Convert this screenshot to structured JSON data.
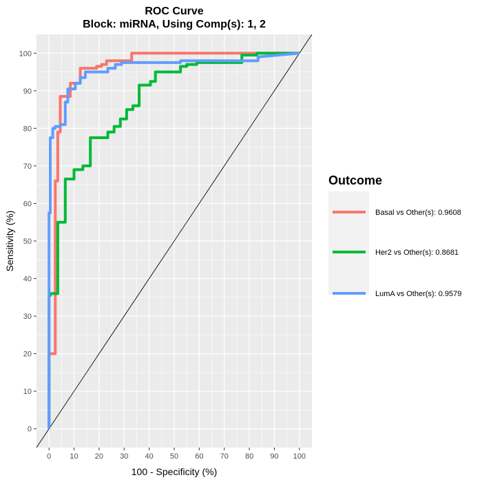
{
  "chart_data": {
    "type": "line",
    "title": "ROC Curve",
    "subtitle": "Block: miRNA, Using Comp(s): 1, 2",
    "xlabel": "100 - Specificity (%)",
    "ylabel": "Sensitivity (%)",
    "xlim": [
      -5,
      105
    ],
    "ylim": [
      -5,
      105
    ],
    "x_ticks": [
      0,
      10,
      20,
      30,
      40,
      50,
      60,
      70,
      80,
      90,
      100
    ],
    "y_ticks": [
      0,
      10,
      20,
      30,
      40,
      50,
      60,
      70,
      80,
      90,
      100
    ],
    "grid": true,
    "reference_line": {
      "x": [
        -5,
        105
      ],
      "y": [
        -5,
        105
      ],
      "color": "#000000"
    },
    "legend": {
      "title": "Outcome",
      "position": "right"
    },
    "series": [
      {
        "name": "Basal vs Other(s): 0.9608",
        "color": "#F8766D",
        "x": [
          0,
          0,
          2.5,
          2.5,
          3.5,
          3.5,
          4.5,
          4.5,
          8.5,
          8.5,
          12.5,
          12.5,
          19,
          19,
          21,
          21,
          23,
          23,
          33,
          33,
          100
        ],
        "y": [
          0,
          20,
          20,
          66,
          66,
          79,
          79,
          88.5,
          88.5,
          92,
          92,
          96,
          96,
          96.5,
          96.5,
          97,
          97,
          98,
          98,
          100,
          100
        ]
      },
      {
        "name": "Her2 vs Other(s): 0.8681",
        "color": "#00BA38",
        "x": [
          0,
          0,
          0.5,
          0.5,
          3.5,
          3.5,
          6.5,
          6.5,
          10,
          10,
          13.5,
          13.5,
          16.5,
          16.5,
          23.5,
          23.5,
          26,
          26,
          28.5,
          28.5,
          31,
          31,
          33.5,
          33.5,
          36,
          36,
          40.5,
          40.5,
          42.5,
          42.5,
          52.5,
          52.5,
          55,
          55,
          59,
          59,
          77,
          77,
          83,
          83,
          89,
          89,
          100
        ],
        "y": [
          0,
          35.5,
          35.5,
          36,
          36,
          55,
          55,
          66.5,
          66.5,
          69,
          69,
          70,
          70,
          77.5,
          77.5,
          79,
          79,
          80.5,
          80.5,
          82.5,
          82.5,
          85,
          85,
          86,
          86,
          91.5,
          91.5,
          92.5,
          92.5,
          95,
          95,
          96.5,
          96.5,
          97,
          97,
          97.5,
          97.5,
          99.5,
          99.5,
          100,
          100,
          100,
          100
        ]
      },
      {
        "name": "LumA vs Other(s): 0.9579",
        "color": "#619CFF",
        "x": [
          0,
          0,
          0.5,
          0.5,
          1.5,
          1.5,
          2.5,
          2.5,
          4.5,
          4.5,
          6.5,
          6.5,
          7.5,
          7.5,
          10.5,
          10.5,
          12.5,
          12.5,
          14.5,
          14.5,
          23.5,
          23.5,
          26.5,
          26.5,
          29,
          29,
          52.5,
          52.5,
          83.5,
          83.5,
          100
        ],
        "y": [
          0,
          57.5,
          57.5,
          77.5,
          77.5,
          80,
          80,
          80.5,
          80.5,
          81,
          81,
          87,
          87,
          90.5,
          90.5,
          92,
          92,
          93.5,
          93.5,
          95,
          95,
          96,
          96,
          97,
          97,
          97.5,
          97.5,
          98,
          98,
          99,
          100
        ]
      }
    ]
  }
}
